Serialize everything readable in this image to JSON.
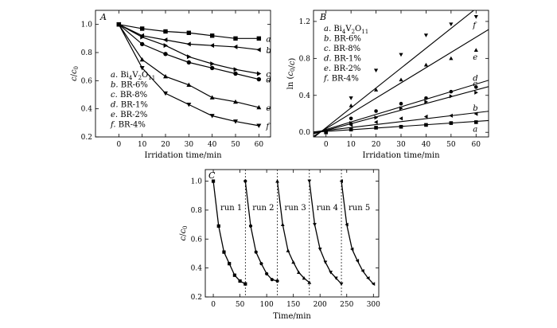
{
  "chart_data": [
    {
      "panel": "A",
      "type": "line",
      "xlabel": "Irridation time/min",
      "ylabel": "c/c0",
      "xlim": [
        -10,
        65
      ],
      "ylim": [
        0.2,
        1.1
      ],
      "xticks": [
        0,
        10,
        20,
        30,
        40,
        50,
        60
      ],
      "yticks": [
        0.2,
        0.4,
        0.6,
        0.8,
        1.0
      ],
      "x": [
        0,
        10,
        20,
        30,
        40,
        50,
        60
      ],
      "legend": [
        "a. Bi4V2O11",
        "b. BR-6%",
        "c. BR-8%",
        "d. BR-1%",
        "e. BR-2%",
        "f. BR-4%"
      ],
      "legend_position": "left",
      "series": [
        {
          "name": "a",
          "marker": "square",
          "values": [
            1.0,
            0.97,
            0.95,
            0.94,
            0.92,
            0.9,
            0.9
          ]
        },
        {
          "name": "b",
          "marker": "triangle-left",
          "values": [
            1.0,
            0.92,
            0.89,
            0.86,
            0.85,
            0.84,
            0.82
          ]
        },
        {
          "name": "c",
          "marker": "triangle-right",
          "values": [
            1.0,
            0.91,
            0.85,
            0.77,
            0.72,
            0.68,
            0.65
          ]
        },
        {
          "name": "d",
          "marker": "circle",
          "values": [
            1.0,
            0.86,
            0.79,
            0.73,
            0.69,
            0.65,
            0.61
          ]
        },
        {
          "name": "e",
          "marker": "triangle-up",
          "values": [
            1.0,
            0.75,
            0.63,
            0.57,
            0.48,
            0.45,
            0.41
          ]
        },
        {
          "name": "f",
          "marker": "triangle-down",
          "values": [
            1.0,
            0.69,
            0.51,
            0.43,
            0.35,
            0.31,
            0.28
          ]
        }
      ]
    },
    {
      "panel": "B",
      "type": "scatter",
      "xlabel": "Irridation time/min",
      "ylabel": "ln (c0/c)",
      "xlim": [
        -5,
        65
      ],
      "ylim": [
        -0.05,
        1.32
      ],
      "xticks": [
        0,
        10,
        20,
        30,
        40,
        50,
        60
      ],
      "yticks": [
        0.0,
        0.4,
        0.8,
        1.2
      ],
      "x": [
        0,
        10,
        20,
        30,
        40,
        50,
        60
      ],
      "legend": [
        "a. Bi4V2O11",
        "b. BR-6%",
        "c. BR-8%",
        "d. BR-1%",
        "e. BR-2%",
        "f. BR-4%"
      ],
      "legend_position": "top-left",
      "series": [
        {
          "name": "a",
          "marker": "square",
          "values": [
            0.0,
            0.03,
            0.05,
            0.06,
            0.08,
            0.1,
            0.11
          ],
          "fit_line": [
            0.01,
            0.0018
          ]
        },
        {
          "name": "b",
          "marker": "triangle-left",
          "values": [
            0.0,
            0.08,
            0.11,
            0.15,
            0.17,
            0.18,
            0.2
          ],
          "fit_line": [
            0.02,
            0.0032
          ]
        },
        {
          "name": "c",
          "marker": "triangle-right",
          "values": [
            0.0,
            0.1,
            0.16,
            0.26,
            0.33,
            0.39,
            0.43
          ],
          "fit_line": [
            0.02,
            0.0073
          ]
        },
        {
          "name": "d",
          "marker": "circle",
          "values": [
            0.0,
            0.15,
            0.23,
            0.31,
            0.37,
            0.44,
            0.49
          ],
          "fit_line": [
            0.03,
            0.0082
          ]
        },
        {
          "name": "e",
          "marker": "triangle-up",
          "values": [
            0.0,
            0.29,
            0.46,
            0.57,
            0.73,
            0.8,
            0.89
          ],
          "fit_line": [
            0.04,
            0.0165
          ]
        },
        {
          "name": "f",
          "marker": "triangle-down",
          "values": [
            0.0,
            0.37,
            0.67,
            0.84,
            1.05,
            1.17,
            1.25
          ],
          "fit_line": [
            0.05,
            0.0215
          ]
        }
      ]
    },
    {
      "panel": "C",
      "type": "line",
      "xlabel": "Time/min",
      "ylabel": "c/c0",
      "xlim": [
        -15,
        310
      ],
      "ylim": [
        0.2,
        1.08
      ],
      "xticks": [
        0,
        50,
        100,
        150,
        200,
        250,
        300
      ],
      "yticks": [
        0.2,
        0.4,
        0.6,
        0.8,
        1.0
      ],
      "divider_x": [
        60,
        120,
        180,
        240
      ],
      "run_labels": [
        "run 1",
        "run 2",
        "run 3",
        "run 4",
        "run 5"
      ],
      "series": [
        {
          "name": "run 1",
          "marker": "square",
          "x": [
            0,
            10,
            20,
            30,
            40,
            50,
            60
          ],
          "values": [
            1.0,
            0.69,
            0.51,
            0.43,
            0.35,
            0.31,
            0.29
          ]
        },
        {
          "name": "run 2",
          "marker": "circle",
          "x": [
            60,
            70,
            80,
            90,
            100,
            110,
            120
          ],
          "values": [
            1.0,
            0.69,
            0.51,
            0.43,
            0.36,
            0.32,
            0.31
          ]
        },
        {
          "name": "run 3",
          "marker": "triangle-up",
          "x": [
            120,
            130,
            140,
            150,
            160,
            170,
            180
          ],
          "values": [
            1.0,
            0.7,
            0.52,
            0.44,
            0.37,
            0.33,
            0.3
          ]
        },
        {
          "name": "run 4",
          "marker": "triangle-down",
          "x": [
            180,
            190,
            200,
            210,
            220,
            230,
            240
          ],
          "values": [
            1.0,
            0.7,
            0.53,
            0.44,
            0.37,
            0.33,
            0.29
          ]
        },
        {
          "name": "run 5",
          "marker": "triangle-left",
          "x": [
            240,
            250,
            260,
            270,
            280,
            290,
            300
          ],
          "values": [
            1.0,
            0.7,
            0.53,
            0.45,
            0.38,
            0.33,
            0.29
          ]
        }
      ]
    }
  ]
}
